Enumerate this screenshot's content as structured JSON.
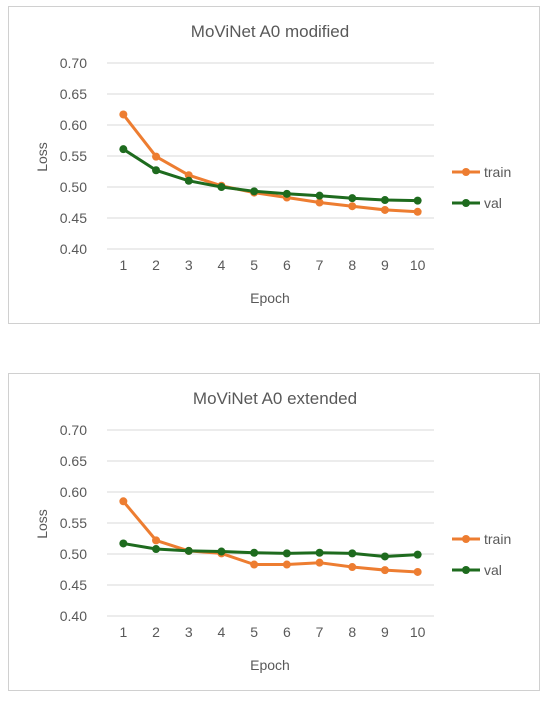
{
  "chart_data": [
    {
      "type": "line",
      "title": "MoViNet A0 modified",
      "xlabel": "Epoch",
      "ylabel": "Loss",
      "categories": [
        "1",
        "2",
        "3",
        "4",
        "5",
        "6",
        "7",
        "8",
        "9",
        "10"
      ],
      "ylim": [
        0.4,
        0.7
      ],
      "yticks": [
        "0.40",
        "0.45",
        "0.50",
        "0.55",
        "0.60",
        "0.65",
        "0.70"
      ],
      "grid": true,
      "legend_position": "right",
      "series": [
        {
          "name": "train",
          "color": "#ED7D31",
          "values": [
            0.617,
            0.549,
            0.519,
            0.502,
            0.491,
            0.483,
            0.475,
            0.469,
            0.463,
            0.46
          ]
        },
        {
          "name": "val",
          "color": "#1E6B1E",
          "values": [
            0.561,
            0.527,
            0.51,
            0.5,
            0.493,
            0.489,
            0.486,
            0.482,
            0.479,
            0.478
          ]
        }
      ]
    },
    {
      "type": "line",
      "title": "MoViNet A0 extended",
      "xlabel": "Epoch",
      "ylabel": "Loss",
      "categories": [
        "1",
        "2",
        "3",
        "4",
        "5",
        "6",
        "7",
        "8",
        "9",
        "10"
      ],
      "ylim": [
        0.4,
        0.7
      ],
      "yticks": [
        "0.40",
        "0.45",
        "0.50",
        "0.55",
        "0.60",
        "0.65",
        "0.70"
      ],
      "grid": true,
      "legend_position": "right",
      "series": [
        {
          "name": "train",
          "color": "#ED7D31",
          "values": [
            0.585,
            0.522,
            0.505,
            0.501,
            0.483,
            0.483,
            0.486,
            0.479,
            0.474,
            0.471
          ]
        },
        {
          "name": "val",
          "color": "#1E6B1E",
          "values": [
            0.517,
            0.508,
            0.505,
            0.504,
            0.502,
            0.501,
            0.502,
            0.501,
            0.496,
            0.499
          ]
        }
      ]
    }
  ]
}
